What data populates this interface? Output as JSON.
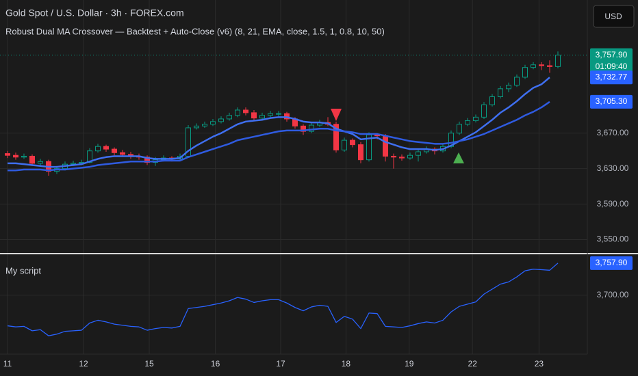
{
  "header": {
    "symbol": "Gold Spot / U.S. Dollar · 3h · FOREX.com",
    "indicator": "Robust Dual MA Crossover — Backtest + Auto-Close (v6) (8, 21, EMA, close, 1.5, 1, 0.8, 10, 50)",
    "currency": "USD"
  },
  "chart_data": [
    {
      "type": "candlestick",
      "up_color": "#089981",
      "down_color": "#f23645",
      "ohlc": [
        [
          3647,
          3650,
          3642,
          3645
        ],
        [
          3645,
          3648,
          3640,
          3643
        ],
        [
          3643,
          3647,
          3641,
          3644
        ],
        [
          3644,
          3646,
          3633,
          3636
        ],
        [
          3636,
          3641,
          3634,
          3638
        ],
        [
          3638,
          3640,
          3622,
          3627
        ],
        [
          3627,
          3633,
          3624,
          3630
        ],
        [
          3630,
          3638,
          3628,
          3635
        ],
        [
          3635,
          3639,
          3633,
          3636
        ],
        [
          3636,
          3640,
          3634,
          3637
        ],
        [
          3637,
          3653,
          3636,
          3650
        ],
        [
          3650,
          3658,
          3648,
          3655
        ],
        [
          3655,
          3657,
          3649,
          3652
        ],
        [
          3652,
          3654,
          3645,
          3648
        ],
        [
          3648,
          3651,
          3643,
          3646
        ],
        [
          3646,
          3649,
          3641,
          3644
        ],
        [
          3644,
          3647,
          3640,
          3643
        ],
        [
          3643,
          3645,
          3634,
          3637
        ],
        [
          3637,
          3643,
          3633,
          3640
        ],
        [
          3640,
          3645,
          3638,
          3642
        ],
        [
          3642,
          3644,
          3638,
          3641
        ],
        [
          3641,
          3647,
          3639,
          3644
        ],
        [
          3644,
          3679,
          3643,
          3676
        ],
        [
          3676,
          3681,
          3674,
          3678
        ],
        [
          3678,
          3683,
          3676,
          3680
        ],
        [
          3680,
          3686,
          3678,
          3683
        ],
        [
          3683,
          3689,
          3681,
          3686
        ],
        [
          3686,
          3693,
          3684,
          3690
        ],
        [
          3690,
          3699,
          3688,
          3696
        ],
        [
          3696,
          3699,
          3690,
          3693
        ],
        [
          3693,
          3696,
          3684,
          3687
        ],
        [
          3687,
          3693,
          3685,
          3690
        ],
        [
          3690,
          3695,
          3688,
          3692
        ],
        [
          3692,
          3695,
          3689,
          3692
        ],
        [
          3692,
          3694,
          3683,
          3686
        ],
        [
          3686,
          3688,
          3675,
          3678
        ],
        [
          3678,
          3680,
          3668,
          3672
        ],
        [
          3672,
          3682,
          3670,
          3679
        ],
        [
          3679,
          3685,
          3677,
          3682
        ],
        [
          3682,
          3688,
          3678,
          3680
        ],
        [
          3680,
          3683,
          3648,
          3651
        ],
        [
          3651,
          3665,
          3649,
          3662
        ],
        [
          3662,
          3664,
          3654,
          3657
        ],
        [
          3657,
          3660,
          3636,
          3640
        ],
        [
          3640,
          3671,
          3638,
          3668
        ],
        [
          3668,
          3670,
          3663,
          3667
        ],
        [
          3667,
          3669,
          3638,
          3644
        ],
        [
          3644,
          3647,
          3630,
          3643
        ],
        [
          3643,
          3646,
          3639,
          3642
        ],
        [
          3642,
          3648,
          3640,
          3645
        ],
        [
          3645,
          3652,
          3638,
          3649
        ],
        [
          3649,
          3655,
          3647,
          3652
        ],
        [
          3652,
          3654,
          3646,
          3650
        ],
        [
          3650,
          3658,
          3648,
          3655
        ],
        [
          3655,
          3673,
          3653,
          3670
        ],
        [
          3670,
          3683,
          3668,
          3680
        ],
        [
          3680,
          3687,
          3678,
          3684
        ],
        [
          3684,
          3691,
          3682,
          3688
        ],
        [
          3688,
          3705,
          3686,
          3702
        ],
        [
          3702,
          3714,
          3700,
          3711
        ],
        [
          3711,
          3723,
          3709,
          3720
        ],
        [
          3720,
          3727,
          3716,
          3724
        ],
        [
          3724,
          3736,
          3722,
          3733
        ],
        [
          3733,
          3747,
          3731,
          3744
        ],
        [
          3744,
          3750,
          3742,
          3747
        ],
        [
          3747,
          3750,
          3741,
          3746
        ],
        [
          3746,
          3752,
          3738,
          3745
        ],
        [
          3745,
          3762,
          3743,
          3757.9
        ]
      ],
      "lines": [
        {
          "color": "#3f6ff0",
          "values": [
            3636,
            3636,
            3635,
            3634,
            3633,
            3632,
            3632,
            3633,
            3634,
            3635,
            3638,
            3641,
            3643,
            3644,
            3644,
            3644,
            3644,
            3642,
            3641,
            3641,
            3641,
            3642,
            3650,
            3656,
            3661,
            3666,
            3670,
            3675,
            3680,
            3683,
            3684,
            3685,
            3687,
            3688,
            3688,
            3686,
            3683,
            3682,
            3682,
            3681,
            3675,
            3672,
            3669,
            3663,
            3664,
            3665,
            3660,
            3657,
            3654,
            3652,
            3652,
            3652,
            3651,
            3652,
            3656,
            3661,
            3666,
            3671,
            3678,
            3685,
            3693,
            3699,
            3706,
            3714,
            3721,
            3725,
            3732.77,
            null
          ]
        },
        {
          "color": "#2f5be0",
          "values": [
            3628,
            3628,
            3629,
            3629,
            3629,
            3628,
            3629,
            3629,
            3630,
            3631,
            3632,
            3634,
            3635,
            3636,
            3637,
            3638,
            3638,
            3638,
            3638,
            3639,
            3639,
            3639,
            3643,
            3646,
            3649,
            3652,
            3655,
            3658,
            3662,
            3664,
            3666,
            3668,
            3670,
            3672,
            3673,
            3673,
            3673,
            3674,
            3675,
            3675,
            3673,
            3672,
            3671,
            3669,
            3669,
            3669,
            3667,
            3665,
            3663,
            3661,
            3660,
            3659,
            3658,
            3658,
            3659,
            3661,
            3663,
            3666,
            3669,
            3673,
            3677,
            3681,
            3685,
            3690,
            3694,
            3699,
            3705.3,
            null
          ]
        }
      ],
      "ylim": [
        3535,
        3820
      ],
      "yticks": [
        {
          "value": 3550,
          "label": "3,550.00"
        },
        {
          "value": 3590,
          "label": "3,590.00"
        },
        {
          "value": 3630,
          "label": "3,630.00"
        },
        {
          "value": 3670,
          "label": "3,670.00"
        }
      ],
      "xticks": [
        {
          "value": 0,
          "label": "11"
        },
        {
          "value": 9.25,
          "label": "12"
        },
        {
          "value": 17.25,
          "label": "15"
        },
        {
          "value": 25.3,
          "label": "16"
        },
        {
          "value": 33.25,
          "label": "17"
        },
        {
          "value": 41.2,
          "label": "18"
        },
        {
          "value": 48.9,
          "label": "19"
        },
        {
          "value": 56.6,
          "label": "22"
        },
        {
          "value": 64.7,
          "label": "23"
        }
      ],
      "price_labels": [
        {
          "value": 3757.9,
          "label": "3,757.90",
          "color": "#089981"
        },
        {
          "value": 3732.77,
          "label": "3,732.77",
          "color": "#2962ff"
        },
        {
          "value": 3705.3,
          "label": "3,705.30",
          "color": "#2962ff"
        }
      ],
      "countdown": "01:09:40",
      "grid": true
    },
    {
      "type": "line",
      "title": "My script",
      "color": "#2962ff",
      "values": [
        3645,
        3643,
        3644,
        3636,
        3638,
        3627,
        3630,
        3635,
        3636,
        3637,
        3650,
        3655,
        3652,
        3648,
        3646,
        3644,
        3643,
        3637,
        3640,
        3642,
        3641,
        3644,
        3676,
        3678,
        3680,
        3683,
        3686,
        3690,
        3696,
        3693,
        3687,
        3690,
        3692,
        3692,
        3686,
        3678,
        3672,
        3679,
        3682,
        3680,
        3651,
        3662,
        3657,
        3640,
        3668,
        3667,
        3644,
        3643,
        3642,
        3645,
        3649,
        3652,
        3650,
        3655,
        3670,
        3680,
        3684,
        3688,
        3702,
        3711,
        3720,
        3724,
        3733,
        3744,
        3747,
        3746,
        3745,
        3757.9
      ],
      "ylim": [
        3594,
        3770
      ],
      "yticks": [
        {
          "value": 3700,
          "label": "3,700.00"
        }
      ],
      "price_labels": [
        {
          "value": 3757.9,
          "label": "3,757.90",
          "color": "#2962ff"
        }
      ],
      "grid": true
    }
  ]
}
